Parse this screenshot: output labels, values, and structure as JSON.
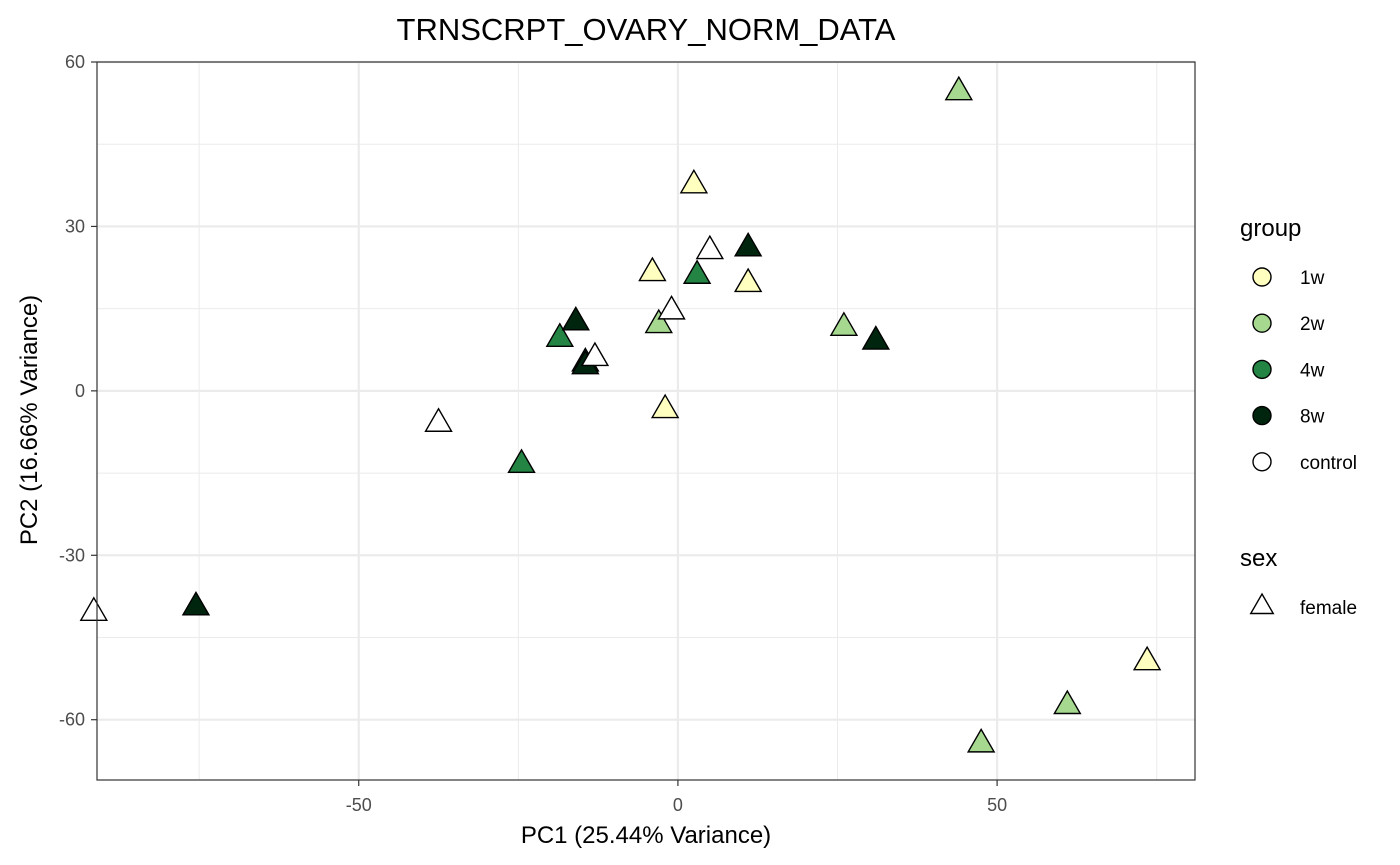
{
  "chart_data": {
    "type": "scatter",
    "title": "TRNSCRPT_OVARY_NORM_DATA",
    "xlabel": "PC1 (25.44% Variance)",
    "ylabel": "PC2 (16.66% Variance)",
    "xlim": [
      -91,
      81
    ],
    "ylim": [
      -71,
      60
    ],
    "x_ticks": [
      -50,
      0,
      50
    ],
    "x_tick_labels": [
      "-50",
      "0",
      "50"
    ],
    "y_ticks": [
      -60,
      -30,
      0,
      30,
      60
    ],
    "y_tick_labels": [
      "-60",
      "-30",
      "0",
      "30",
      "60"
    ],
    "grid": true,
    "legend_position": "right",
    "legend": {
      "group_title": "group",
      "sex_title": "sex",
      "groups": [
        {
          "name": "1w",
          "color": "#ffffbf"
        },
        {
          "name": "2w",
          "color": "#a6d98f"
        },
        {
          "name": "4w",
          "color": "#238443"
        },
        {
          "name": "8w",
          "color": "#00250f"
        },
        {
          "name": "control",
          "color": "#ffffff"
        }
      ],
      "sexes": [
        {
          "name": "female",
          "shape": "triangle"
        }
      ]
    },
    "series": [
      {
        "name": "1w",
        "color": "#ffffbf",
        "points": [
          {
            "x": 2.5,
            "y": 37.5
          },
          {
            "x": -4,
            "y": 21.5
          },
          {
            "x": 11,
            "y": 19.5
          },
          {
            "x": -2,
            "y": -3.5
          },
          {
            "x": 73.5,
            "y": -49.5
          }
        ]
      },
      {
        "name": "2w",
        "color": "#a6d98f",
        "points": [
          {
            "x": 44,
            "y": 54.5
          },
          {
            "x": -3,
            "y": 12
          },
          {
            "x": 26,
            "y": 11.5
          },
          {
            "x": 61,
            "y": -57.5
          },
          {
            "x": 47.5,
            "y": -64.5
          }
        ]
      },
      {
        "name": "4w",
        "color": "#238443",
        "points": [
          {
            "x": 3,
            "y": 21
          },
          {
            "x": -18.5,
            "y": 9.5
          },
          {
            "x": -14.5,
            "y": 5
          },
          {
            "x": -24.5,
            "y": -13.5
          }
        ]
      },
      {
        "name": "8w",
        "color": "#00250f",
        "points": [
          {
            "x": 11,
            "y": 26
          },
          {
            "x": -16,
            "y": 12.5
          },
          {
            "x": -14.5,
            "y": 4.5
          },
          {
            "x": 31,
            "y": 9
          },
          {
            "x": -75.5,
            "y": -39.5
          }
        ]
      },
      {
        "name": "control",
        "color": "#ffffff",
        "points": [
          {
            "x": 5,
            "y": 25.5
          },
          {
            "x": -1,
            "y": 14.5
          },
          {
            "x": -13,
            "y": 6
          },
          {
            "x": -37.5,
            "y": -6
          },
          {
            "x": -91.5,
            "y": -40.5
          }
        ]
      }
    ]
  }
}
